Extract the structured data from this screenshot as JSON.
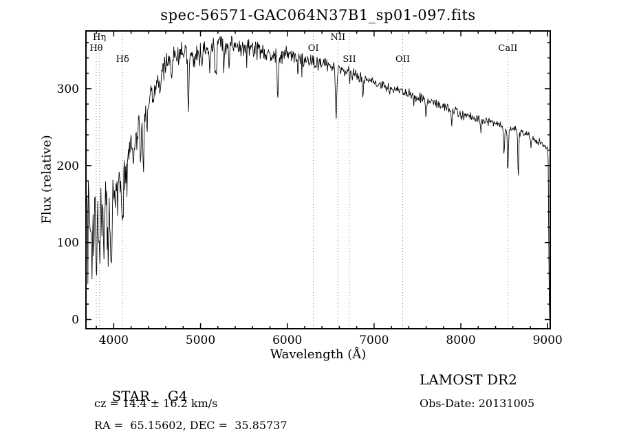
{
  "title": "spec-56571-GAC064N37B1_sp01-097.fits",
  "axes": {
    "xlabel": "Wavelength (Å)",
    "ylabel": "Flux (relative)"
  },
  "footer": {
    "object_class": "STAR",
    "object_subclass": "G4",
    "survey_release": "LAMOST DR2",
    "cz_text": "cz = 14.4 ± 16.2 km/s",
    "obs_date_text": "Obs-Date: 20131005",
    "ra_dec_text": "RA =  65.15602, DEC =  35.85737"
  },
  "colors": {
    "background": "#ffffff",
    "text": "#000000",
    "spectrum_line": "#000000",
    "marker_dotted_line": "#888888",
    "frame": "#000000"
  },
  "chart_data": {
    "type": "line",
    "title": "spec-56571-GAC064N37B1_sp01-097.fits",
    "xlabel": "Wavelength (Å)",
    "ylabel": "Flux (relative)",
    "xlim": [
      3680,
      9030
    ],
    "ylim": [
      -12,
      375
    ],
    "xticks": [
      4000,
      5000,
      6000,
      7000,
      8000,
      9000
    ],
    "yticks": [
      0,
      100,
      200,
      300
    ],
    "x_minor_step": 200,
    "y_minor_step": 20,
    "grid": false,
    "spectral_line_markers": [
      {
        "label": "Hη",
        "wavelength": 3835,
        "row": 0
      },
      {
        "label": "Hθ",
        "wavelength": 3798,
        "row": 1
      },
      {
        "label": "Hδ",
        "wavelength": 4102,
        "row": 2
      },
      {
        "label": "OI",
        "wavelength": 6300,
        "row": 1
      },
      {
        "label": "NII",
        "wavelength": 6583,
        "row": 0
      },
      {
        "label": "SII",
        "wavelength": 6716,
        "row": 2
      },
      {
        "label": "OII",
        "wavelength": 7330,
        "row": 2
      },
      {
        "label": "CaII",
        "wavelength": 8542,
        "row": 1
      }
    ],
    "wave_start": 3690,
    "wave_end": 9026,
    "wave_step": 6,
    "cutoff_start": 9005,
    "cutoff_end": 9020,
    "random_seed": 7,
    "continuum_points": [
      [
        3690,
        150
      ],
      [
        3740,
        152
      ],
      [
        3790,
        150
      ],
      [
        3840,
        152
      ],
      [
        3890,
        158
      ],
      [
        3940,
        155
      ],
      [
        3980,
        162
      ],
      [
        4020,
        170
      ],
      [
        4060,
        180
      ],
      [
        4100,
        192
      ],
      [
        4160,
        210
      ],
      [
        4200,
        225
      ],
      [
        4250,
        240
      ],
      [
        4300,
        255
      ],
      [
        4350,
        268
      ],
      [
        4400,
        285
      ],
      [
        4450,
        298
      ],
      [
        4500,
        310
      ],
      [
        4550,
        320
      ],
      [
        4600,
        330
      ],
      [
        4650,
        336
      ],
      [
        4700,
        342
      ],
      [
        4750,
        345
      ],
      [
        4800,
        348
      ],
      [
        4900,
        347
      ],
      [
        5000,
        350
      ],
      [
        5100,
        352
      ],
      [
        5200,
        355
      ],
      [
        5300,
        358
      ],
      [
        5350,
        360
      ],
      [
        5400,
        358
      ],
      [
        5500,
        356
      ],
      [
        5600,
        352
      ],
      [
        5700,
        350
      ],
      [
        5800,
        347
      ],
      [
        5900,
        345
      ],
      [
        6000,
        344
      ],
      [
        6100,
        341
      ],
      [
        6200,
        338
      ],
      [
        6300,
        336
      ],
      [
        6400,
        333
      ],
      [
        6500,
        330
      ],
      [
        6600,
        326
      ],
      [
        6700,
        322
      ],
      [
        6800,
        318
      ],
      [
        6900,
        313
      ],
      [
        7000,
        309
      ],
      [
        7100,
        305
      ],
      [
        7200,
        301
      ],
      [
        7300,
        297
      ],
      [
        7400,
        293
      ],
      [
        7500,
        289
      ],
      [
        7600,
        286
      ],
      [
        7700,
        282
      ],
      [
        7800,
        277
      ],
      [
        7900,
        272
      ],
      [
        8000,
        268
      ],
      [
        8100,
        265
      ],
      [
        8200,
        261
      ],
      [
        8300,
        258
      ],
      [
        8400,
        255
      ],
      [
        8500,
        251
      ],
      [
        8600,
        247
      ],
      [
        8700,
        243
      ],
      [
        8800,
        238
      ],
      [
        8900,
        231
      ],
      [
        9000,
        223
      ],
      [
        9026,
        220
      ]
    ],
    "absorption_features": [
      [
        3727,
        45,
        5
      ],
      [
        3750,
        55,
        6
      ],
      [
        3771,
        55,
        6
      ],
      [
        3798,
        68,
        7
      ],
      [
        3820,
        38,
        5
      ],
      [
        3835,
        66,
        7
      ],
      [
        3860,
        40,
        5
      ],
      [
        3889,
        72,
        8
      ],
      [
        3934,
        85,
        8
      ],
      [
        3969,
        82,
        8
      ],
      [
        4045,
        28,
        4
      ],
      [
        4102,
        72,
        8
      ],
      [
        4144,
        24,
        4
      ],
      [
        4227,
        34,
        5
      ],
      [
        4271,
        26,
        4
      ],
      [
        4308,
        46,
        7
      ],
      [
        4340,
        68,
        7
      ],
      [
        4383,
        34,
        5
      ],
      [
        4405,
        24,
        4
      ],
      [
        4458,
        20,
        4
      ],
      [
        4531,
        20,
        4
      ],
      [
        4668,
        24,
        5
      ],
      [
        4861,
        68,
        8
      ],
      [
        4921,
        20,
        4
      ],
      [
        5015,
        18,
        4
      ],
      [
        5110,
        20,
        4
      ],
      [
        5172,
        32,
        6
      ],
      [
        5184,
        28,
        5
      ],
      [
        5270,
        30,
        6
      ],
      [
        5330,
        22,
        4
      ],
      [
        5890,
        55,
        7
      ],
      [
        6122,
        20,
        4
      ],
      [
        6280,
        16,
        5
      ],
      [
        6563,
        62,
        8
      ],
      [
        6720,
        14,
        4
      ],
      [
        6870,
        26,
        8
      ],
      [
        7180,
        14,
        6
      ],
      [
        7600,
        18,
        8
      ],
      [
        7890,
        12,
        5
      ],
      [
        8230,
        12,
        5
      ],
      [
        8498,
        40,
        6
      ],
      [
        8542,
        60,
        6
      ],
      [
        8662,
        55,
        6
      ],
      [
        8807,
        14,
        5
      ]
    ],
    "noise_profile": [
      [
        3690,
        36
      ],
      [
        3900,
        34
      ],
      [
        3960,
        28
      ],
      [
        4050,
        20
      ],
      [
        4150,
        15
      ],
      [
        4300,
        13
      ],
      [
        4600,
        11
      ],
      [
        5000,
        10
      ],
      [
        5600,
        9
      ],
      [
        6000,
        8
      ],
      [
        6500,
        6.5
      ],
      [
        7000,
        5.5
      ],
      [
        7500,
        5
      ],
      [
        8000,
        4.5
      ],
      [
        8600,
        4
      ],
      [
        9026,
        3.5
      ]
    ]
  }
}
